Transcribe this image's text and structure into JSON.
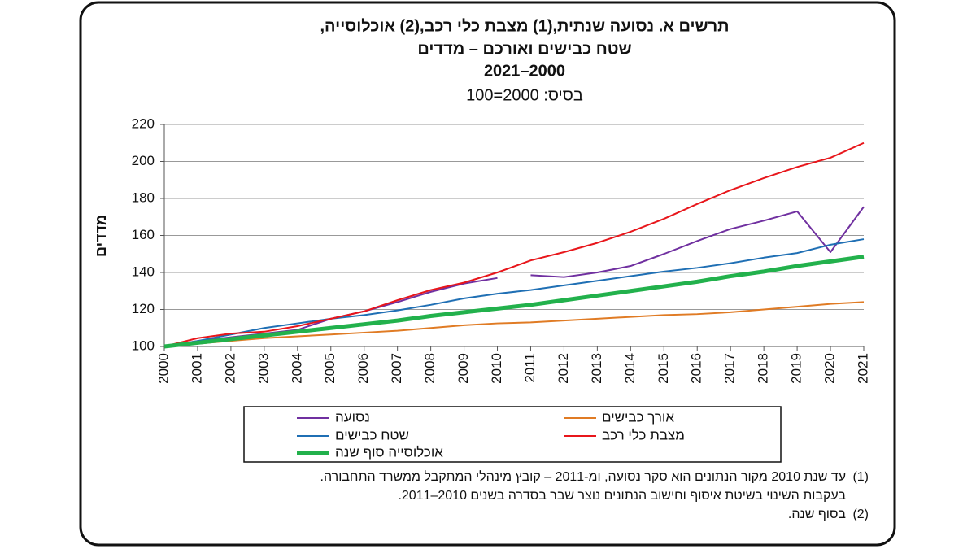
{
  "chart_data": {
    "type": "line",
    "title": [
      "תרשים א. נסועה שנתית,(1) מצבת כלי רכב,(2) אוכלוסייה,",
      "שטח כבישים ואורכם – מדדים",
      "2021–2000"
    ],
    "subtitle": "בסיס: 2000=100",
    "y_label": "מדדים",
    "categories": [
      "2000",
      "2001",
      "2002",
      "2003",
      "2004",
      "2005",
      "2006",
      "2007",
      "2008",
      "2009",
      "2010",
      "2011",
      "2012",
      "2013",
      "2014",
      "2015",
      "2016",
      "2017",
      "2018",
      "2019",
      "2020",
      "2021"
    ],
    "ylim": [
      100,
      220
    ],
    "yticks": [
      100,
      120,
      140,
      160,
      180,
      200,
      220
    ],
    "grid": true,
    "series": [
      {
        "name": "נסועה",
        "color": "#7030a0",
        "width": 2,
        "break_after_index": 10,
        "values": [
          100,
          103,
          105,
          107,
          109,
          115,
          119,
          124,
          129.5,
          134,
          137,
          138.5,
          137.5,
          140,
          143.5,
          150,
          157,
          163.5,
          168,
          173,
          151,
          175.5
        ]
      },
      {
        "name": "אורך כבישים",
        "color": "#e07b24",
        "width": 2,
        "values": [
          100,
          101.5,
          103,
          104.5,
          105.5,
          106.5,
          107.5,
          108.5,
          110,
          111.5,
          112.5,
          113,
          114,
          115,
          116,
          117,
          117.5,
          118.5,
          120,
          121.5,
          123,
          124
        ]
      },
      {
        "name": "שטח כבישים",
        "color": "#1f6fb4",
        "width": 2,
        "values": [
          100,
          103,
          106.5,
          110,
          112.5,
          115,
          117,
          119.5,
          122.5,
          126,
          128.5,
          130.5,
          133,
          135.5,
          138,
          140.5,
          142.5,
          145,
          148,
          150.5,
          155,
          158
        ]
      },
      {
        "name": "מצבת כלי רכב",
        "color": "#e8161b",
        "width": 2,
        "values": [
          100,
          104.5,
          107,
          108,
          111,
          115,
          119,
          125,
          130.5,
          134.5,
          140,
          146.5,
          151,
          156,
          162,
          169,
          177,
          184.5,
          191,
          197,
          202,
          210
        ]
      },
      {
        "name": "אוכלוסייה סוף שנה",
        "color": "#22b14c",
        "width": 5,
        "values": [
          100,
          102,
          104,
          106,
          108,
          110,
          112,
          114,
          116.5,
          118.5,
          120.5,
          122.5,
          125,
          127.5,
          130,
          132.5,
          135,
          138,
          140.5,
          143.5,
          146,
          148.5
        ]
      }
    ],
    "footnotes": [
      {
        "marker": "(1)",
        "lines": [
          "עד שנת 2010 מקור הנתונים הוא סקר נסועה, ומ-2011 – קובץ מינהלי המתקבל ממשרד התחבורה.",
          "בעקבות השינוי בשיטת איסוף וחישוב הנתונים נוצר שבר בסדרה בשנים 2010–2011."
        ]
      },
      {
        "marker": "(2)",
        "lines": [
          "בסוף שנה."
        ]
      }
    ]
  }
}
